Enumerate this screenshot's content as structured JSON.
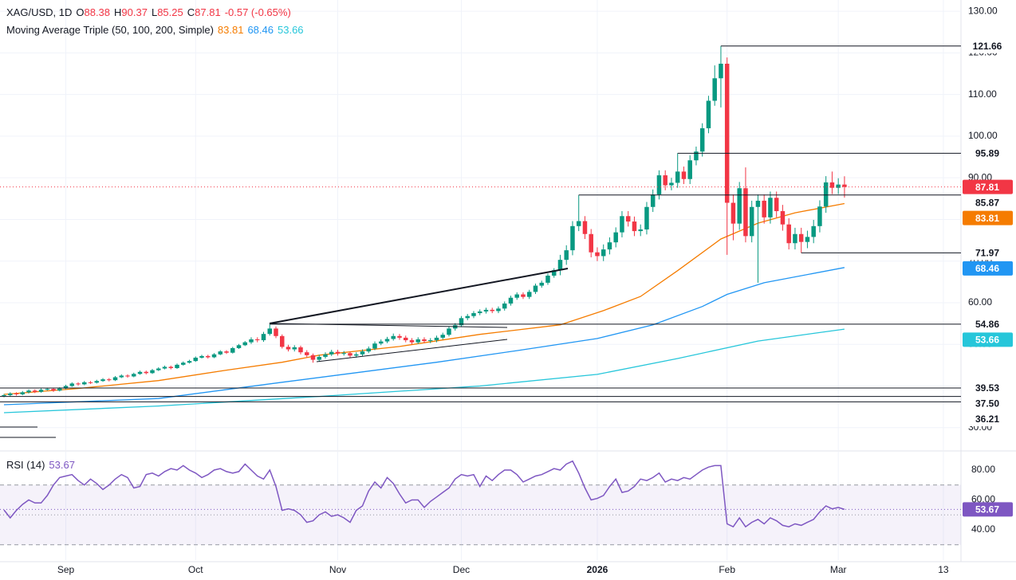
{
  "chart_data": {
    "type": "candlestick",
    "title": "XAG/USD, 1D",
    "ohlc_labels": [
      "O",
      "H",
      "L",
      "C"
    ],
    "change": {
      "value": -0.57,
      "label": "-0.57 (-0.65%)"
    },
    "up_color": "#089981",
    "down_color": "#f23645",
    "xlim": [
      -0.65,
      154.85
    ],
    "xticks": [
      {
        "value": 10,
        "label": "Sep"
      },
      {
        "value": 31,
        "label": "Oct"
      },
      {
        "value": 54,
        "label": "Nov"
      },
      {
        "value": 74,
        "label": "Dec"
      },
      {
        "value": 96,
        "label": "2026"
      },
      {
        "value": 117,
        "label": "Feb"
      },
      {
        "value": 135,
        "label": "Mar"
      },
      {
        "value": 152,
        "label": "13"
      }
    ],
    "ylim": [
      24.6,
      132.7
    ],
    "yticks": [
      {
        "value": 130,
        "label": "130.00"
      },
      {
        "value": 120,
        "label": "120.00"
      },
      {
        "value": 110,
        "label": "110.00"
      },
      {
        "value": 100,
        "label": "100.00"
      },
      {
        "value": 90,
        "label": "90.00"
      },
      {
        "value": 80,
        "label": "80.00"
      },
      {
        "value": 70,
        "label": "70.00"
      },
      {
        "value": 60,
        "label": "60.00"
      },
      {
        "value": 50,
        "label": "50.00"
      },
      {
        "value": 40,
        "label": "40.00"
      },
      {
        "value": 30,
        "label": "30.00"
      }
    ],
    "grid": true,
    "open": [
      37.6,
      37.8,
      38.2,
      38.0,
      38.5,
      38.9,
      38.6,
      39.1,
      39.3,
      38.9,
      39.4,
      40.0,
      40.6,
      40.4,
      40.9,
      40.8,
      41.2,
      41.6,
      41.4,
      42.1,
      42.5,
      42.3,
      42.9,
      43.4,
      43.1,
      43.8,
      44.2,
      44.6,
      44.3,
      45.1,
      45.6,
      46.0,
      46.8,
      47.2,
      46.9,
      47.6,
      48.3,
      48.0,
      49.1,
      49.8,
      50.5,
      51.2,
      51.0,
      52.5,
      53.8,
      52.0,
      49.4,
      48.8,
      49.3,
      48.1,
      47.4,
      46.3,
      47.0,
      47.6,
      48.2,
      47.8,
      47.9,
      47.3,
      47.6,
      48.3,
      49.0,
      50.2,
      50.7,
      51.3,
      52.0,
      51.6,
      51.0,
      50.5,
      51.2,
      50.8,
      51.0,
      51.6,
      52.3,
      53.8,
      54.6,
      56.3,
      56.8,
      57.5,
      57.9,
      58.3,
      58.0,
      58.6,
      59.8,
      61.2,
      62.0,
      61.4,
      62.6,
      64.1,
      64.8,
      66.5,
      67.8,
      70.3,
      72.6,
      78.4,
      79.6,
      76.5,
      72.1,
      71.2,
      72.8,
      74.5,
      76.9,
      80.8,
      79.5,
      77.2,
      77.6,
      83.0,
      86.0,
      90.6,
      88.2,
      88.8,
      91.5,
      89.7,
      94.2,
      96.3,
      101.9,
      108.5,
      113.9,
      117.4,
      84.0,
      79.0,
      87.5,
      76.0,
      83.0,
      84.5,
      80.5,
      85.2,
      82.0,
      78.8,
      74.3,
      76.5,
      74.6,
      75.8,
      78.4,
      83.1,
      88.9,
      87.6,
      88.38
    ],
    "high": [
      38.1,
      38.5,
      38.5,
      38.8,
      39.2,
      39.2,
      39.4,
      39.6,
      39.6,
      39.7,
      40.3,
      40.9,
      40.9,
      41.2,
      41.2,
      41.5,
      41.9,
      41.9,
      42.4,
      42.8,
      42.8,
      43.2,
      43.7,
      43.7,
      44.1,
      44.5,
      44.9,
      44.9,
      45.4,
      45.9,
      46.3,
      47.1,
      47.5,
      47.5,
      47.9,
      48.6,
      48.6,
      49.4,
      50.1,
      50.8,
      51.7,
      51.7,
      53.0,
      54.86,
      54.3,
      52.4,
      49.9,
      49.8,
      49.7,
      48.6,
      47.8,
      47.5,
      48.1,
      48.7,
      48.7,
      48.4,
      48.3,
      48.1,
      48.8,
      49.5,
      50.7,
      51.2,
      51.8,
      52.6,
      52.5,
      52.1,
      51.5,
      51.7,
      51.7,
      51.5,
      52.1,
      52.8,
      54.3,
      55.1,
      56.8,
      57.3,
      58.0,
      58.4,
      58.8,
      58.8,
      59.1,
      60.3,
      61.7,
      62.5,
      62.5,
      63.1,
      64.6,
      65.3,
      67.0,
      68.3,
      71.5,
      73.8,
      79.6,
      85.87,
      80.8,
      77.7,
      73.3,
      74.0,
      75.7,
      78.1,
      82.0,
      82.0,
      80.7,
      78.8,
      84.2,
      87.2,
      91.8,
      91.8,
      90.0,
      95.89,
      92.7,
      95.4,
      97.5,
      103.1,
      109.7,
      117.0,
      121.66,
      118.9,
      86.0,
      89.0,
      92.5,
      84.5,
      86.0,
      86.0,
      86.7,
      86.7,
      83.5,
      80.3,
      78.0,
      78.0,
      77.3,
      79.9,
      84.6,
      90.4,
      91.5,
      89.9,
      90.37
    ],
    "low": [
      37.3,
      37.5,
      37.7,
      37.8,
      38.2,
      38.3,
      38.4,
      38.9,
      38.6,
      38.7,
      39.2,
      39.8,
      40.1,
      40.2,
      40.5,
      40.6,
      41.0,
      41.1,
      41.2,
      41.9,
      42.0,
      42.1,
      42.7,
      42.8,
      42.9,
      43.6,
      44.0,
      44.0,
      44.1,
      44.9,
      45.4,
      45.8,
      46.6,
      46.6,
      46.7,
      47.4,
      47.7,
      47.8,
      48.9,
      49.6,
      50.1,
      50.5,
      50.6,
      52.1,
      51.5,
      49.0,
      48.3,
      48.3,
      47.6,
      46.9,
      45.6,
      45.9,
      46.6,
      47.2,
      47.3,
      47.3,
      46.8,
      46.8,
      47.2,
      47.9,
      48.6,
      49.8,
      50.3,
      50.9,
      51.1,
      50.5,
      50.0,
      50.1,
      50.3,
      50.3,
      50.5,
      51.2,
      51.9,
      53.3,
      54.2,
      55.8,
      56.3,
      57.0,
      57.4,
      57.5,
      57.5,
      58.1,
      59.3,
      60.7,
      60.9,
      60.9,
      62.1,
      63.6,
      64.3,
      66.0,
      66.6,
      69.1,
      71.4,
      77.2,
      75.3,
      70.9,
      70.0,
      70.0,
      71.6,
      73.3,
      75.7,
      78.3,
      76.0,
      76.0,
      76.4,
      81.8,
      84.8,
      87.0,
      87.0,
      87.6,
      88.5,
      88.5,
      93.0,
      95.1,
      100.7,
      107.3,
      106.9,
      71.5,
      75.0,
      77.5,
      74.5,
      74.5,
      64.8,
      79.0,
      79.0,
      80.5,
      77.3,
      72.8,
      72.8,
      71.97,
      73.1,
      74.3,
      76.9,
      81.6,
      86.1,
      86.1,
      85.25
    ],
    "close": [
      37.8,
      38.2,
      38.0,
      38.5,
      38.9,
      38.6,
      39.1,
      39.3,
      38.9,
      39.4,
      40.0,
      40.6,
      40.4,
      40.9,
      40.8,
      41.2,
      41.6,
      41.4,
      42.1,
      42.5,
      42.3,
      42.9,
      43.4,
      43.1,
      43.8,
      44.2,
      44.6,
      44.3,
      45.1,
      45.6,
      46.0,
      46.8,
      47.2,
      46.9,
      47.6,
      48.3,
      48.0,
      49.1,
      49.8,
      50.5,
      51.2,
      51.0,
      52.5,
      53.8,
      52.0,
      49.4,
      48.8,
      49.3,
      48.1,
      47.4,
      46.3,
      47.0,
      47.6,
      48.2,
      47.8,
      47.9,
      47.3,
      47.6,
      48.3,
      49.0,
      50.2,
      50.7,
      51.3,
      52.0,
      51.6,
      51.0,
      50.5,
      51.2,
      50.8,
      51.0,
      51.6,
      52.3,
      53.8,
      54.6,
      56.3,
      56.8,
      57.5,
      57.9,
      58.3,
      58.0,
      58.6,
      59.8,
      61.2,
      62.0,
      61.4,
      62.6,
      64.1,
      64.8,
      66.5,
      67.8,
      70.3,
      72.6,
      78.4,
      79.6,
      76.5,
      72.1,
      71.2,
      72.8,
      74.5,
      76.9,
      80.8,
      79.5,
      77.2,
      77.6,
      83.0,
      86.0,
      90.6,
      88.2,
      88.8,
      91.5,
      89.7,
      94.2,
      96.3,
      101.9,
      108.5,
      113.9,
      117.4,
      84.0,
      79.0,
      87.5,
      76.0,
      83.0,
      84.5,
      80.5,
      85.2,
      82.0,
      78.8,
      74.3,
      76.5,
      74.6,
      75.8,
      78.4,
      83.1,
      88.9,
      87.6,
      88.38,
      87.81
    ],
    "indicator_title": "Moving Average Triple (50, 100, 200, Simple)",
    "series": [
      {
        "color": "#f57c00",
        "x": [
          0,
          12,
          25,
          36,
          45,
          51,
          64,
          77,
          90,
          97,
          103,
          109,
          116,
          122,
          128,
          136
        ],
        "values": [
          38.0,
          39.4,
          41.3,
          43.8,
          45.7,
          47.4,
          49.5,
          52.4,
          54.7,
          58.1,
          61.5,
          67.7,
          75.3,
          79.1,
          81.6,
          83.81
        ]
      },
      {
        "color": "#2196f3",
        "x": [
          0,
          25,
          45,
          57,
          70,
          83,
          96,
          105,
          113,
          117,
          123,
          136
        ],
        "values": [
          35.5,
          37.0,
          40.9,
          43.2,
          45.7,
          48.5,
          51.4,
          54.7,
          59.1,
          62.0,
          64.8,
          68.46
        ]
      },
      {
        "color": "#26c6da",
        "x": [
          0,
          25,
          51,
          77,
          96,
          109,
          122,
          136
        ],
        "values": [
          33.6,
          35.2,
          37.5,
          40.0,
          42.8,
          46.6,
          50.8,
          53.66
        ]
      }
    ],
    "levels": [
      121.66,
      95.89,
      85.87,
      71.97,
      54.86,
      39.53,
      {
        "value": 37.5,
        "label": "37.50"
      },
      36.21
    ],
    "rsi": {
      "title": "RSI (14)",
      "color": "#7e57c2",
      "ylim": [
        19.7,
        92.3
      ],
      "yticks": [
        {
          "value": 80,
          "label": "80.00"
        },
        {
          "value": 60,
          "label": "60.00"
        },
        {
          "value": 40,
          "label": "40.00"
        }
      ],
      "levels": [
        70,
        50,
        30
      ],
      "values": [
        53.3,
        48,
        53,
        57,
        60,
        58,
        58,
        63,
        70,
        75,
        76,
        77,
        73,
        70,
        74,
        71,
        67,
        70,
        74,
        77,
        75,
        68,
        69,
        77,
        78,
        76,
        79,
        81,
        80,
        83,
        80,
        78,
        75,
        77,
        80,
        81,
        79,
        78,
        79,
        84,
        80,
        76,
        74,
        80,
        69,
        53,
        54,
        53,
        50,
        45,
        46,
        50,
        52,
        49,
        50,
        48,
        45,
        53,
        56,
        66,
        72,
        68,
        75,
        71,
        64,
        58,
        60,
        60,
        55,
        59,
        62,
        65,
        68,
        74,
        77,
        76,
        77,
        69,
        76,
        73,
        77,
        80,
        80,
        77,
        72,
        74,
        76,
        77,
        79,
        81,
        80,
        84,
        86,
        78,
        68,
        60,
        61,
        63,
        69,
        74,
        65,
        66,
        69,
        74,
        73,
        75,
        78,
        72,
        74,
        73,
        75,
        74,
        77,
        80,
        82,
        83,
        83,
        44,
        42,
        48,
        42,
        45,
        47,
        44,
        48,
        46,
        43,
        42,
        44,
        43,
        45,
        47,
        52,
        56,
        54,
        55,
        53.67
      ]
    }
  }
}
